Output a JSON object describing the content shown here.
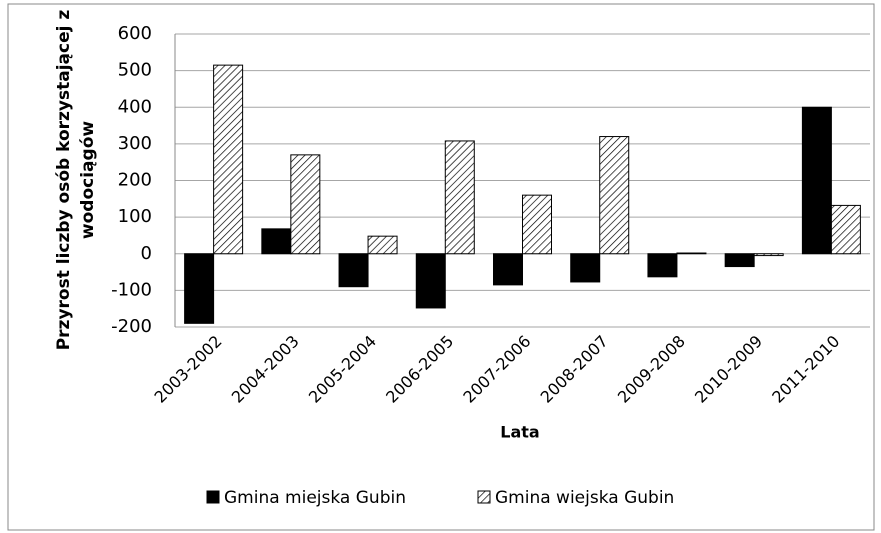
{
  "chart_data": {
    "type": "bar",
    "y_label": [
      "Przyrost liczby osób korzystającej z",
      "wodociągów"
    ],
    "x_label": "Lata",
    "categories": [
      "2003-2002",
      "2004-2003",
      "2005-2004",
      "2006-2005",
      "2007-2006",
      "2008-2007",
      "2009-2008",
      "2010-2009",
      "2011-2010"
    ],
    "series": [
      {
        "name": "Gmina miejska Gubin",
        "color": "#000000",
        "hatch": false,
        "values": [
          -190,
          68,
          -90,
          -148,
          -85,
          -77,
          -63,
          -35,
          400
        ]
      },
      {
        "name": "Gmina wiejska Gubin",
        "color": "#000000",
        "hatch": true,
        "values": [
          515,
          270,
          48,
          308,
          160,
          320,
          2,
          -5,
          132
        ]
      }
    ],
    "ylim": [
      -200,
      600
    ],
    "yticks": [
      -200,
      -100,
      0,
      100,
      200,
      300,
      400,
      500,
      600
    ],
    "grid": true,
    "legend": "bottom"
  }
}
